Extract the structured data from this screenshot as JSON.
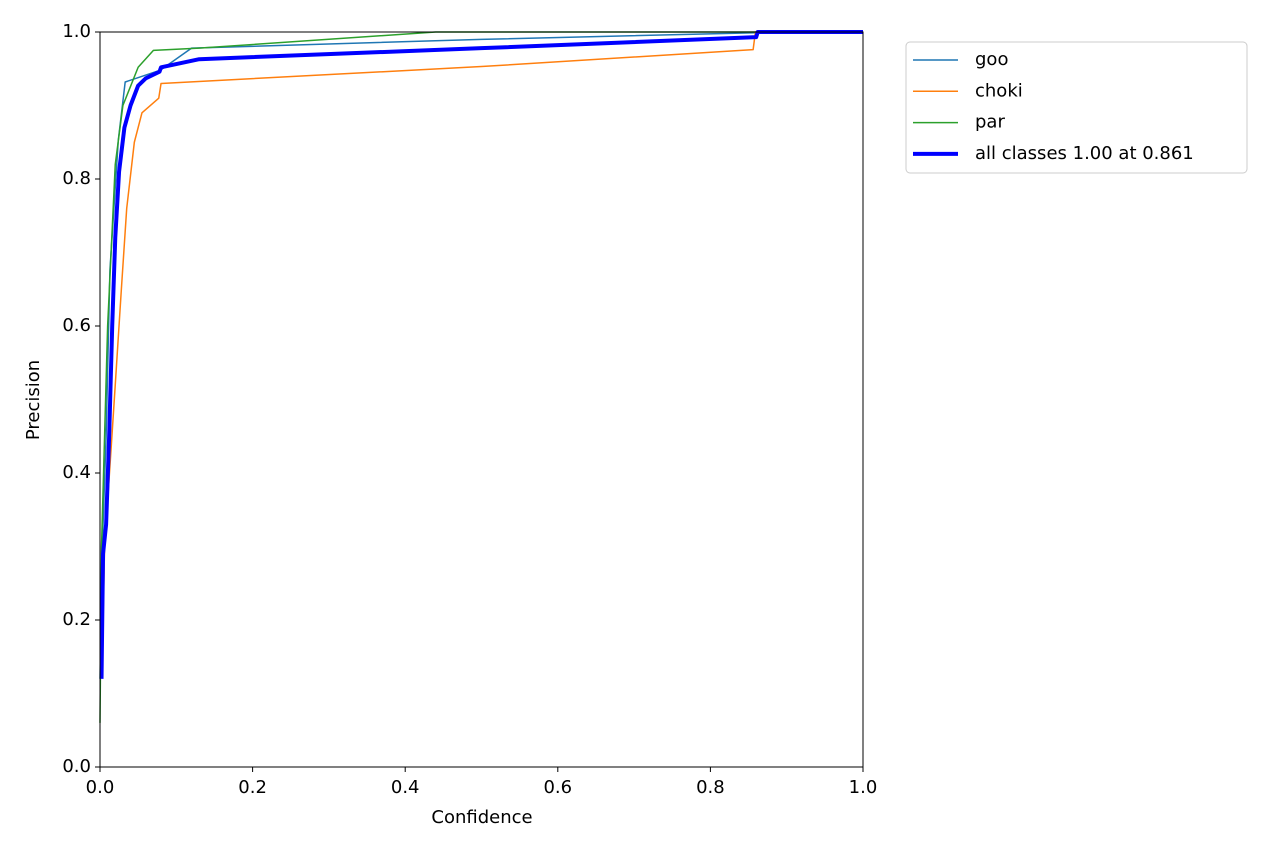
{
  "chart_data": {
    "type": "line",
    "xlabel": "Confidence",
    "ylabel": "Precision",
    "xlim": [
      0,
      1
    ],
    "ylim": [
      0,
      1
    ],
    "xticks": [
      {
        "value": 0,
        "label": "0.0"
      },
      0.2,
      0.4,
      0.6,
      0.8,
      {
        "value": 1,
        "label": "1.0"
      }
    ],
    "yticks": [
      {
        "value": 0,
        "label": "0.0"
      },
      0.2,
      0.4,
      0.6,
      0.8,
      {
        "value": 1,
        "label": "1.0"
      }
    ],
    "legend": "outside-upper-right",
    "series": [
      {
        "name": "goo",
        "color": "#1f77b4",
        "width": 1.5,
        "x": [
          0,
          0.003,
          0.008,
          0.013,
          0.024,
          0.033,
          0.079,
          0.12,
          0.5,
          0.86,
          0.862,
          1
        ],
        "values": [
          0.12,
          0.3,
          0.45,
          0.676,
          0.853,
          0.932,
          0.948,
          0.978,
          0.99,
          0.999,
          1,
          1
        ]
      },
      {
        "name": "choki",
        "color": "#ff7f0e",
        "width": 1.5,
        "x": [
          0.003,
          0.006,
          0.015,
          0.02,
          0.028,
          0.035,
          0.045,
          0.055,
          0.077,
          0.08,
          0.5,
          0.856,
          0.859,
          1
        ],
        "values": [
          0.15,
          0.3,
          0.44,
          0.52,
          0.65,
          0.76,
          0.85,
          0.89,
          0.91,
          0.93,
          0.953,
          0.976,
          1,
          1
        ]
      },
      {
        "name": "par",
        "color": "#2ca02c",
        "width": 1.5,
        "x": [
          0,
          0.002,
          0.01,
          0.02,
          0.03,
          0.05,
          0.07,
          0.13,
          0.44,
          1
        ],
        "values": [
          0.06,
          0.3,
          0.6,
          0.82,
          0.9,
          0.952,
          0.975,
          0.978,
          1,
          1
        ]
      },
      {
        "name": "all classes 1.00 at 0.861",
        "color": "#0000ff",
        "width": 4,
        "x": [
          0.002,
          0.004,
          0.008,
          0.012,
          0.016,
          0.02,
          0.025,
          0.032,
          0.04,
          0.05,
          0.06,
          0.078,
          0.08,
          0.13,
          0.5,
          0.86,
          0.862,
          1
        ],
        "values": [
          0.12,
          0.29,
          0.33,
          0.45,
          0.6,
          0.72,
          0.81,
          0.87,
          0.9,
          0.927,
          0.937,
          0.946,
          0.952,
          0.963,
          0.978,
          0.993,
          1,
          1
        ]
      }
    ]
  }
}
